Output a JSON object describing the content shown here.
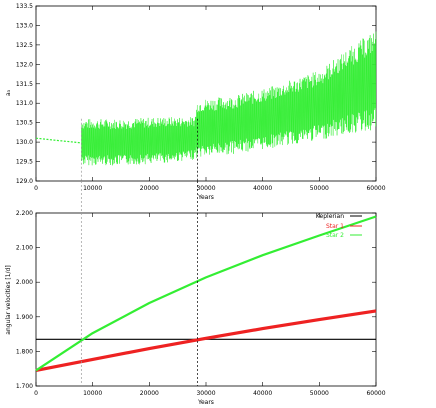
{
  "chart_data": [
    {
      "type": "line",
      "title": "",
      "xlabel": "Years",
      "ylabel": "a₃",
      "xlim": [
        0,
        60000
      ],
      "ylim": [
        129.0,
        133.5
      ],
      "xticks": [
        0,
        10000,
        20000,
        30000,
        40000,
        50000,
        60000
      ],
      "xtick_labels": [
        "0",
        "10000",
        "20000",
        "30000",
        "40000",
        "50000",
        "60000"
      ],
      "yticks": [
        129.0,
        129.5,
        130.0,
        130.5,
        131.0,
        131.5,
        132.0,
        132.5,
        133.0,
        133.5
      ],
      "ytick_labels": [
        "129.0",
        "129.5",
        "130.0",
        "130.5",
        "131.0",
        "131.5",
        "132.0",
        "132.5",
        "133.0",
        "133.5"
      ],
      "grid": false,
      "colors": {
        "series": "#33ee33"
      },
      "series": [
        {
          "phase": "pre-transition",
          "x": [
            0,
            2000,
            4000,
            6000,
            8000
          ],
          "y": [
            130.1,
            130.07,
            130.04,
            130.01,
            129.98
          ]
        },
        {
          "phase": "oscillating",
          "x": [
            8000,
            15000,
            22000,
            28000,
            28500,
            35000,
            42000,
            50000,
            55000,
            60000
          ],
          "y_center": [
            130.0,
            130.0,
            130.05,
            130.1,
            130.35,
            130.45,
            130.65,
            130.95,
            131.3,
            131.6
          ],
          "y_half_amplitude": [
            0.6,
            0.6,
            0.6,
            0.55,
            0.75,
            0.75,
            0.8,
            0.9,
            1.1,
            1.3
          ]
        }
      ],
      "reference_lines_x": [
        8000,
        28500
      ]
    },
    {
      "type": "line",
      "title": "",
      "xlabel": "Years",
      "ylabel": "angular velocities [1/d]",
      "xlim": [
        0,
        60000
      ],
      "ylim": [
        1.7,
        2.2
      ],
      "xticks": [
        0,
        10000,
        20000,
        30000,
        40000,
        50000,
        60000
      ],
      "xtick_labels": [
        "0",
        "10000",
        "20000",
        "30000",
        "40000",
        "50000",
        "60000"
      ],
      "yticks": [
        1.7,
        1.8,
        1.9,
        2.0,
        2.1,
        2.2
      ],
      "ytick_labels": [
        "1.700",
        "1.800",
        "1.900",
        "2.000",
        "2.100",
        "2.200"
      ],
      "grid": false,
      "legend": {
        "placement": "top-right"
      },
      "series": [
        {
          "name": "Keplerian",
          "color": "#000000",
          "x": [
            0,
            60000
          ],
          "y": [
            1.835,
            1.835
          ]
        },
        {
          "name": "Star 1",
          "color": "#ee2222",
          "x": [
            0,
            10000,
            20000,
            30000,
            40000,
            50000,
            60000
          ],
          "y": [
            1.745,
            1.777,
            1.808,
            1.838,
            1.866,
            1.892,
            1.917
          ]
        },
        {
          "name": "Star 2",
          "color": "#33ee33",
          "x": [
            0,
            10000,
            20000,
            30000,
            40000,
            50000,
            60000
          ],
          "y": [
            1.745,
            1.853,
            1.94,
            2.014,
            2.078,
            2.135,
            2.19
          ]
        }
      ],
      "reference_lines_x": [
        8000,
        28500
      ]
    }
  ]
}
